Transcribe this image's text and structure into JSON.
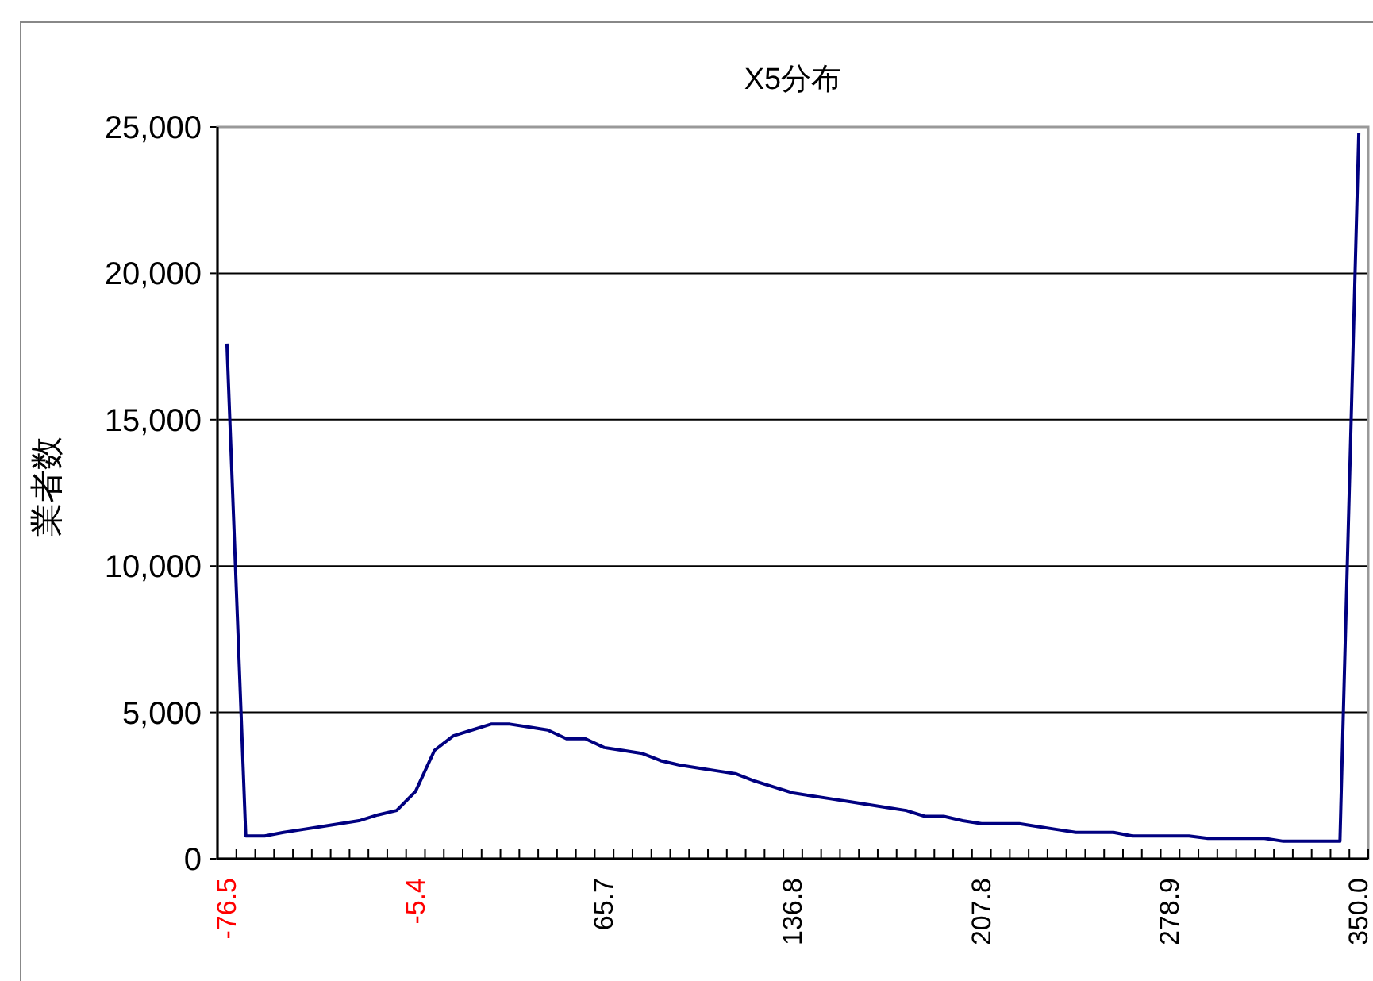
{
  "chart_data": {
    "type": "line",
    "title": "X5分布",
    "ylabel": "業者数",
    "categories": [
      "-76.5",
      null,
      null,
      null,
      null,
      null,
      null,
      null,
      null,
      null,
      "-5.4",
      null,
      null,
      null,
      null,
      null,
      null,
      null,
      null,
      null,
      "65.7",
      null,
      null,
      null,
      null,
      null,
      null,
      null,
      null,
      null,
      "136.8",
      null,
      null,
      null,
      null,
      null,
      null,
      null,
      null,
      null,
      "207.8",
      null,
      null,
      null,
      null,
      null,
      null,
      null,
      null,
      null,
      "278.9",
      null,
      null,
      null,
      null,
      null,
      null,
      null,
      null,
      null,
      "350.0"
    ],
    "series": [
      {
        "color": "#000080",
        "values": [
          17600,
          780,
          780,
          900,
          1000,
          1100,
          1200,
          1300,
          1500,
          1650,
          2300,
          3700,
          4200,
          4400,
          4600,
          4600,
          4500,
          4400,
          4100,
          4100,
          3800,
          3700,
          3600,
          3350,
          3200,
          3100,
          3000,
          2900,
          2650,
          2450,
          2250,
          2150,
          2050,
          1950,
          1850,
          1750,
          1650,
          1450,
          1450,
          1300,
          1200,
          1200,
          1200,
          1100,
          1000,
          900,
          900,
          900,
          780,
          780,
          780,
          780,
          700,
          700,
          700,
          700,
          600,
          600,
          600,
          600,
          24800
        ]
      }
    ],
    "ylim": [
      0,
      25000
    ],
    "yticks": [
      0,
      {
        "value": 5000,
        "label": "5,000"
      },
      {
        "value": 10000,
        "label": "10,000"
      },
      {
        "value": 15000,
        "label": "15,000"
      },
      {
        "value": 20000,
        "label": "20,000"
      },
      {
        "value": 25000,
        "label": "25,000"
      }
    ],
    "grid": "y",
    "marker": "none",
    "line_style": "solid"
  }
}
